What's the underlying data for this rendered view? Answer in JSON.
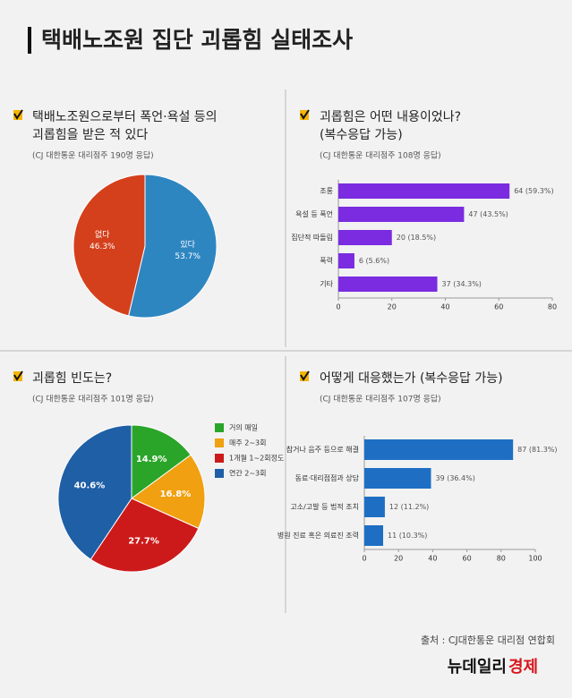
{
  "title": "택배노조원 집단 괴롭힘 실태조사",
  "source": "출처 : CJ대한통운 대리점 연합회",
  "logo": {
    "brand": "뉴데일리",
    "section": "경제"
  },
  "chart_data": [
    {
      "type": "pie",
      "title": [
        "택배노조원으로부터 폭언·욕설 등의",
        "괴롭힘을 받은 적 있다"
      ],
      "subtitle": "(CJ 대한통운 대리점주 190명 응답)",
      "categories": [
        "있다",
        "없다"
      ],
      "values": [
        53.7,
        46.3
      ],
      "value_labels": [
        "53.7%",
        "46.3%"
      ],
      "colors": [
        "#2e86c1",
        "#d4401c"
      ]
    },
    {
      "type": "hbar",
      "title": [
        "괴롭힘은 어떤 내용이었나?",
        "(복수응답 가능)"
      ],
      "subtitle": "(CJ 대한통운 대리점주 108명 응답)",
      "categories": [
        "조롱",
        "욕설 등 폭언",
        "집단적 따돌림",
        "폭력",
        "기타"
      ],
      "values": [
        64,
        47,
        20,
        6,
        37
      ],
      "value_labels": [
        "64 (59.3%)",
        "47 (43.5%)",
        "20 (18.5%)",
        "6 (5.6%)",
        "37 (34.3%)"
      ],
      "color": "#7b2be0",
      "xlim": [
        0,
        80
      ],
      "xticks": [
        0,
        20,
        40,
        60,
        80
      ]
    },
    {
      "type": "pie",
      "title": [
        "괴롭힘 빈도는?"
      ],
      "subtitle": "(CJ 대한통운 대리점주 101명 응답)",
      "categories": [
        "거의 매일",
        "매주 2~3회",
        "1개월 1~2회정도",
        "연간 2~3회"
      ],
      "values": [
        14.9,
        16.8,
        27.7,
        40.6
      ],
      "value_labels": [
        "14.9%",
        "16.8%",
        "27.7%",
        "40.6%"
      ],
      "colors": [
        "#2aa52a",
        "#f0a010",
        "#cc1a1a",
        "#1f5fa6"
      ],
      "legend": "right"
    },
    {
      "type": "hbar",
      "title": [
        "어떻게 대응했는가 (복수응답 가능)"
      ],
      "subtitle": "(CJ 대한통운 대리점주 107명 응답)",
      "categories": [
        "참거나 음주 등으로 해결",
        "동료·대리점점과 상담",
        "고소/고발 등 법적 조치",
        "병원 진료 혹은 의료진 조력"
      ],
      "values": [
        87,
        39,
        12,
        11
      ],
      "value_labels": [
        "87 (81.3%)",
        "39 (36.4%)",
        "12 (11.2%)",
        "11 (10.3%)"
      ],
      "color": "#1e6fc4",
      "xlim": [
        0,
        100
      ],
      "xticks": [
        0,
        20,
        40,
        60,
        80,
        100
      ]
    }
  ]
}
